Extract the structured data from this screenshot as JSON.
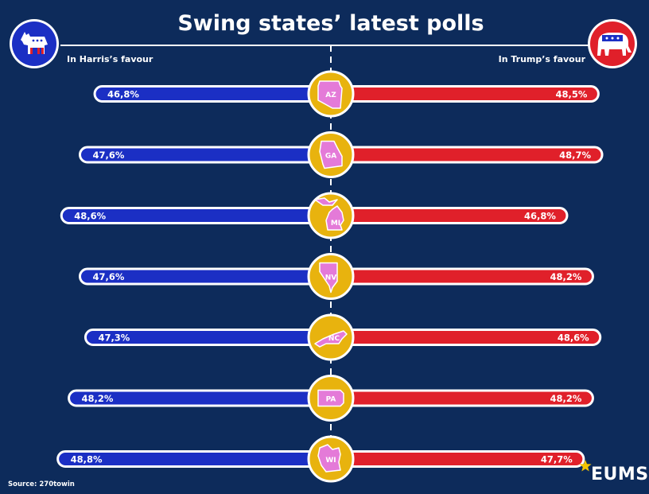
{
  "chart_data": {
    "type": "bar",
    "title": "Swing states’ latest polls",
    "left_label": "In  Harris’s favour",
    "right_label": "In Trump’s favour",
    "categories": [
      "AZ",
      "GA",
      "MI",
      "NV",
      "NC",
      "PA",
      "WI"
    ],
    "series": [
      {
        "name": "Harris",
        "values": [
          46.8,
          47.6,
          48.6,
          47.6,
          47.3,
          48.2,
          48.8
        ],
        "labels": [
          "46,8%",
          "47,6%",
          "48,6%",
          "47,6%",
          "47,3%",
          "48,2%",
          "48,8%"
        ],
        "color": "#1b2fc4"
      },
      {
        "name": "Trump",
        "values": [
          48.5,
          48.7,
          46.8,
          48.2,
          48.6,
          48.2,
          47.7
        ],
        "labels": [
          "48,5%",
          "48,7%",
          "46,8%",
          "48,2%",
          "48,6%",
          "48,2%",
          "47,7%"
        ],
        "color": "#e0202a"
      }
    ],
    "source": "Source: 270towin",
    "brand": "EUMS",
    "colors": {
      "background": "#0d2b5b",
      "circle": "#e8b30e",
      "state": "#e47ad8",
      "star": "#f5c400"
    }
  }
}
